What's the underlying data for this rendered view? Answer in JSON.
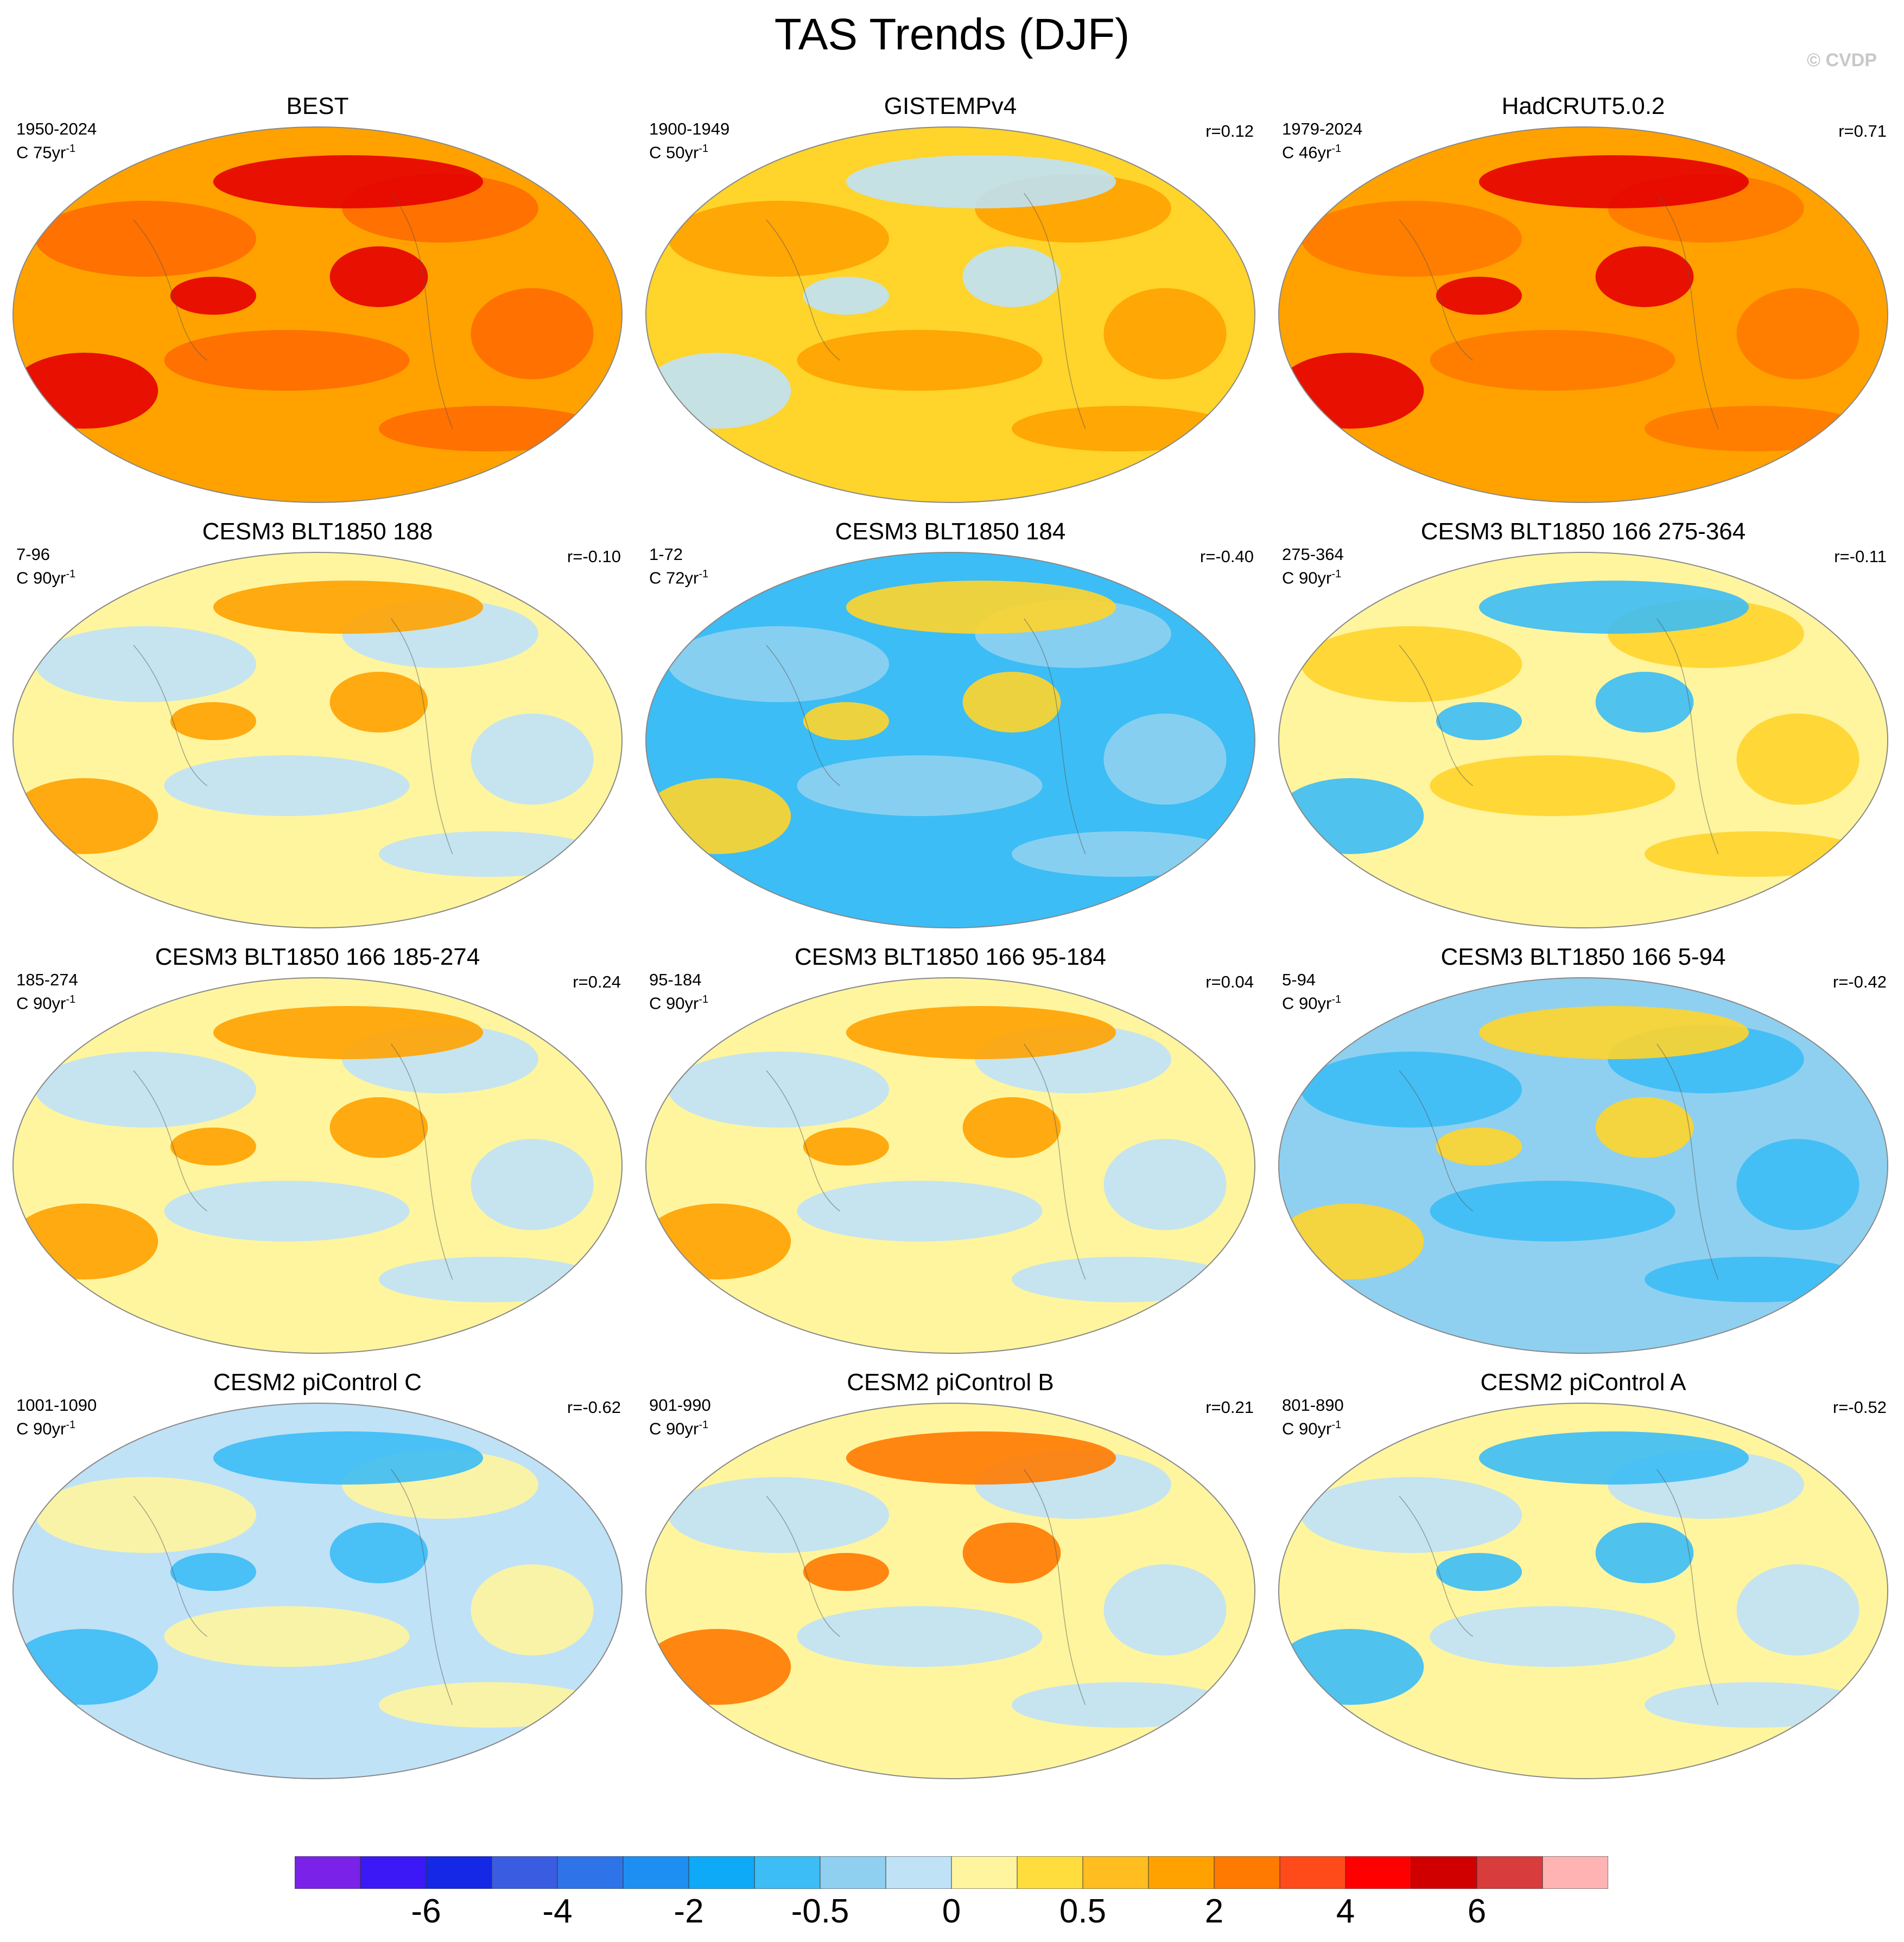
{
  "title": "TAS Trends (DJF)",
  "credit": "© CVDP",
  "chart_data": [
    {
      "type": "heatmap",
      "title": "BEST",
      "period": "1950-2024",
      "units_prefix": "C",
      "trend_length": "75yr",
      "unit_exp": "-1",
      "r": "",
      "fill": [
        "#ffa200",
        "#ff6b00",
        "#e60000"
      ]
    },
    {
      "type": "heatmap",
      "title": "GISTEMPv4",
      "period": "1900-1949",
      "units_prefix": "C",
      "trend_length": "50yr",
      "unit_exp": "-1",
      "r": "r=0.12",
      "fill": [
        "#ffd42b",
        "#ffa200",
        "#bfe2f7"
      ]
    },
    {
      "type": "heatmap",
      "title": "HadCRUT5.0.2",
      "period": "1979-2024",
      "units_prefix": "C",
      "trend_length": "46yr",
      "unit_exp": "-1",
      "r": "r=0.71",
      "fill": [
        "#ffa200",
        "#ff7a00",
        "#e60000"
      ]
    },
    {
      "type": "heatmap",
      "title": "CESM3 BLT1850 188",
      "period": "7-96",
      "units_prefix": "C",
      "trend_length": "90yr",
      "unit_exp": "-1",
      "r": "r=-0.10",
      "fill": [
        "#fff59f",
        "#bfe2f7",
        "#ffa200"
      ]
    },
    {
      "type": "heatmap",
      "title": "CESM3 BLT1850 184",
      "period": "1-72",
      "units_prefix": "C",
      "trend_length": "72yr",
      "unit_exp": "-1",
      "r": "r=-0.40",
      "fill": [
        "#3cbdf5",
        "#8fd0f0",
        "#ffd42b"
      ]
    },
    {
      "type": "heatmap",
      "title": "CESM3 BLT1850 166 275-364",
      "period": "275-364",
      "units_prefix": "C",
      "trend_length": "90yr",
      "unit_exp": "-1",
      "r": "r=-0.11",
      "fill": [
        "#fff59f",
        "#ffd42b",
        "#3cbdf5"
      ]
    },
    {
      "type": "heatmap",
      "title": "CESM3 BLT1850 166 185-274",
      "period": "185-274",
      "units_prefix": "C",
      "trend_length": "90yr",
      "unit_exp": "-1",
      "r": "r=0.24",
      "fill": [
        "#fff59f",
        "#bfe2f7",
        "#ffa200"
      ]
    },
    {
      "type": "heatmap",
      "title": "CESM3 BLT1850 166 95-184",
      "period": "95-184",
      "units_prefix": "C",
      "trend_length": "90yr",
      "unit_exp": "-1",
      "r": "r=0.04",
      "fill": [
        "#fff59f",
        "#bfe2f7",
        "#ffa200"
      ]
    },
    {
      "type": "heatmap",
      "title": "CESM3 BLT1850 166 5-94",
      "period": "5-94",
      "units_prefix": "C",
      "trend_length": "90yr",
      "unit_exp": "-1",
      "r": "r=-0.42",
      "fill": [
        "#8fd0f0",
        "#3cbdf5",
        "#ffd42b"
      ]
    },
    {
      "type": "heatmap",
      "title": "CESM2 piControl C",
      "period": "1001-1090",
      "units_prefix": "C",
      "trend_length": "90yr",
      "unit_exp": "-1",
      "r": "r=-0.62",
      "fill": [
        "#bfe2f7",
        "#fff59f",
        "#3cbdf5"
      ]
    },
    {
      "type": "heatmap",
      "title": "CESM2 piControl B",
      "period": "901-990",
      "units_prefix": "C",
      "trend_length": "90yr",
      "unit_exp": "-1",
      "r": "r=0.21",
      "fill": [
        "#fff59f",
        "#bfe2f7",
        "#ff7a00"
      ]
    },
    {
      "type": "heatmap",
      "title": "CESM2 piControl A",
      "period": "801-890",
      "units_prefix": "C",
      "trend_length": "90yr",
      "unit_exp": "-1",
      "r": "r=-0.52",
      "fill": [
        "#fff59f",
        "#bfe2f7",
        "#3cbdf5"
      ]
    }
  ],
  "colorbar": {
    "colors": [
      "#7a22e8",
      "#3b18f5",
      "#1428e6",
      "#3a5ce0",
      "#2e74e8",
      "#1e8ff2",
      "#0eaaf7",
      "#3cbdf5",
      "#8fd0f0",
      "#bfe2f7",
      "#fff59f",
      "#ffdd3d",
      "#ffbd1f",
      "#ffa200",
      "#ff7a00",
      "#ff4b1a",
      "#ff0000",
      "#d10000",
      "#d93c3c",
      "#ffb3b3"
    ],
    "labels": [
      "-6",
      "-4",
      "-2",
      "-0.5",
      "0",
      "0.5",
      "2",
      "4",
      "6"
    ],
    "label_bins": [
      2,
      4,
      6,
      8,
      10,
      12,
      14,
      16,
      18
    ]
  }
}
